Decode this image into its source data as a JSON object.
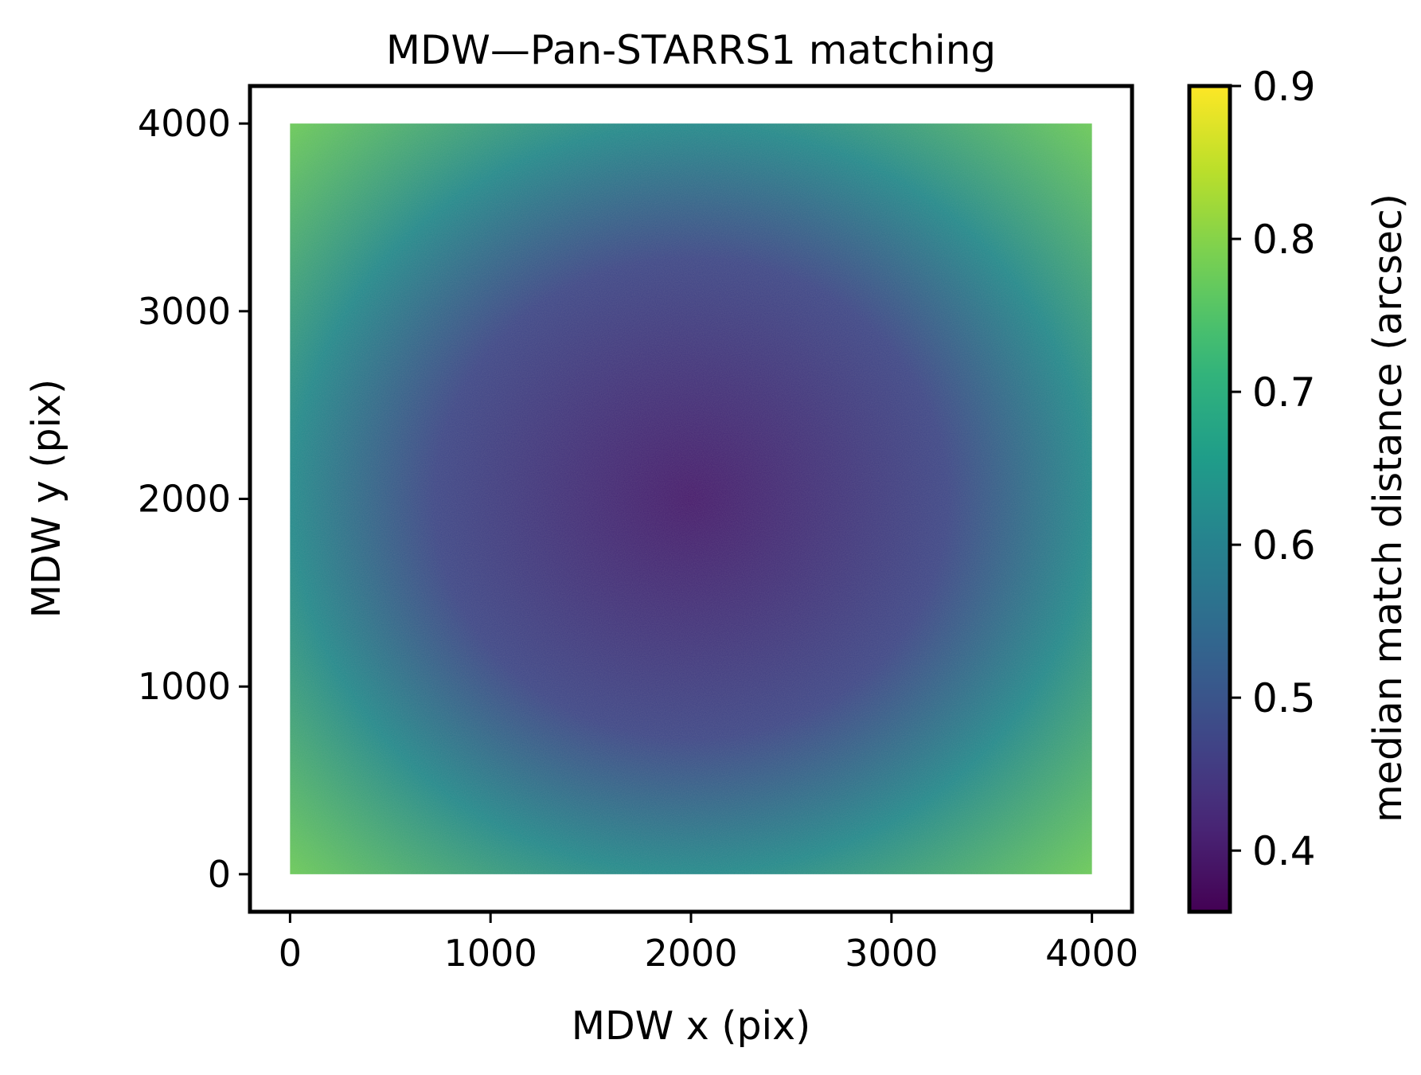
{
  "chart_data": {
    "type": "heatmap",
    "title": "MDW—Pan-STARRS1 matching",
    "xlabel": "MDW x (pix)",
    "ylabel": "MDW y (pix)",
    "xlim": [
      -200,
      4200
    ],
    "ylim": [
      -200,
      4200
    ],
    "xticks": [
      0,
      1000,
      2000,
      3000,
      4000
    ],
    "yticks": [
      0,
      1000,
      2000,
      3000,
      4000
    ],
    "xtick_labels": [
      "0",
      "1000",
      "2000",
      "3000",
      "4000"
    ],
    "ytick_labels": [
      "0",
      "1000",
      "2000",
      "3000",
      "4000"
    ],
    "data_extent": {
      "x": [
        0,
        4000
      ],
      "y": [
        0,
        4000
      ]
    },
    "center_of_minimum": {
      "x": 2000,
      "y": 2000
    },
    "value_at_center": 0.4,
    "value_at_edges": 0.62,
    "value_at_corners": 0.78,
    "colorbar": {
      "label": "median match distance (arcsec)",
      "vmin": 0.36,
      "vmax": 0.9,
      "ticks": [
        0.4,
        0.5,
        0.6,
        0.7,
        0.8,
        0.9
      ],
      "tick_labels": [
        "0.4",
        "0.5",
        "0.6",
        "0.7",
        "0.8",
        "0.9"
      ],
      "colormap": "viridis",
      "colormap_stops": [
        "#440154",
        "#482878",
        "#3e4a89",
        "#31688e",
        "#26828e",
        "#1f9e89",
        "#35b779",
        "#6ece58",
        "#b5de2b",
        "#fde725"
      ]
    }
  }
}
